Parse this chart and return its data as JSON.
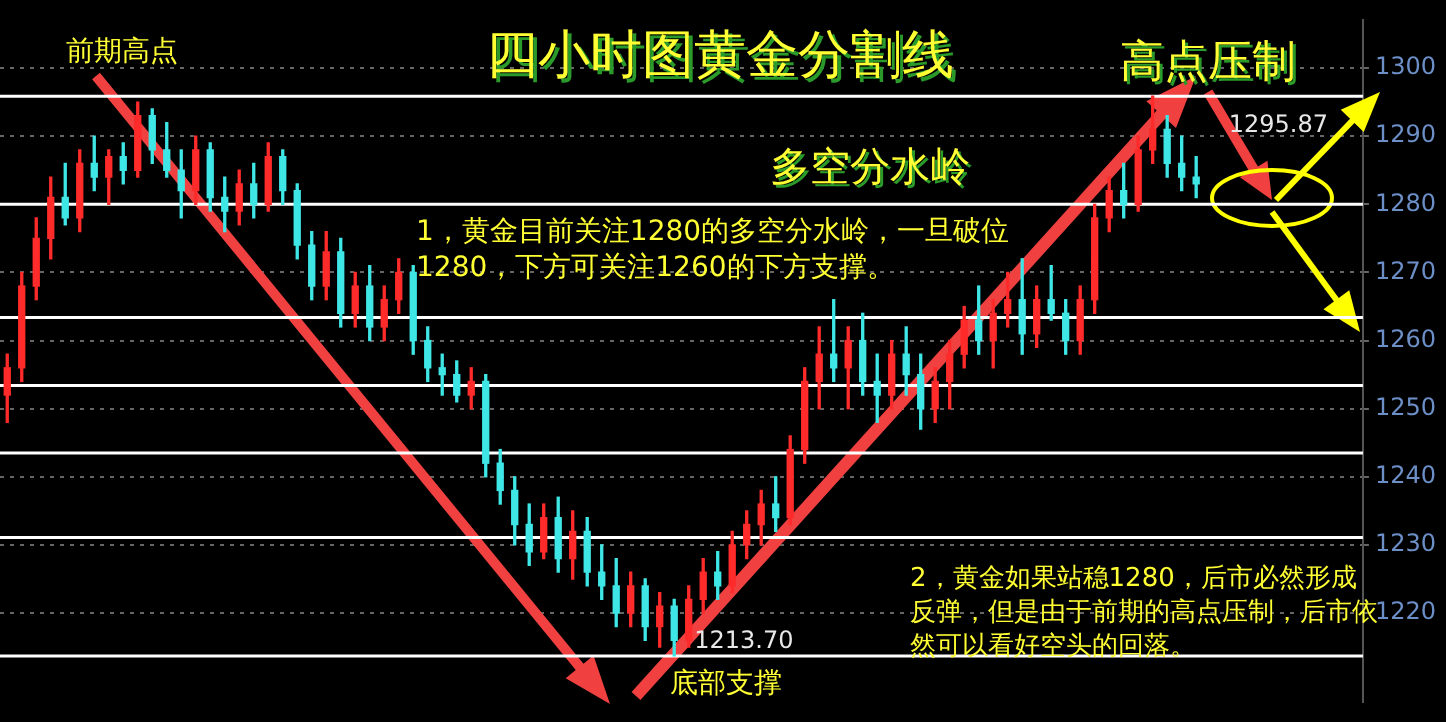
{
  "chart_data": {
    "type": "candlestick",
    "title": "四小时图黄金分割线",
    "categories": [
      null,
      null,
      null,
      null,
      null,
      null,
      null,
      null,
      null,
      null,
      null,
      null,
      null,
      null,
      null,
      null,
      null,
      null,
      null,
      null,
      null,
      null,
      null,
      null,
      null,
      null,
      null,
      null,
      null,
      null,
      null,
      null,
      null,
      null,
      null,
      null,
      null,
      null,
      null,
      null,
      null,
      null,
      null,
      null,
      null,
      null,
      null,
      null,
      null,
      null,
      null,
      null,
      null,
      null,
      null,
      null,
      null,
      null,
      null,
      null,
      null,
      null,
      null,
      null,
      null,
      null,
      null,
      null,
      null,
      null,
      null,
      null,
      null,
      null,
      null,
      null,
      null,
      null,
      null,
      null,
      null,
      null,
      null,
      null,
      null,
      null,
      null,
      null,
      null,
      null,
      null,
      null,
      null,
      null
    ],
    "ohlc": [
      [
        1252,
        1258,
        1248,
        1256
      ],
      [
        1256,
        1270,
        1254,
        1268
      ],
      [
        1268,
        1278,
        1266,
        1275
      ],
      [
        1275,
        1284,
        1272,
        1281
      ],
      [
        1281,
        1286,
        1277,
        1278
      ],
      [
        1278,
        1288,
        1276,
        1286
      ],
      [
        1286,
        1290,
        1282,
        1284
      ],
      [
        1284,
        1288,
        1280,
        1287
      ],
      [
        1287,
        1289,
        1283,
        1285
      ],
      [
        1285,
        1295,
        1284,
        1293
      ],
      [
        1293,
        1294,
        1286,
        1288
      ],
      [
        1288,
        1292,
        1284,
        1285
      ],
      [
        1285,
        1288,
        1278,
        1282
      ],
      [
        1282,
        1290,
        1280,
        1288
      ],
      [
        1288,
        1289,
        1279,
        1281
      ],
      [
        1281,
        1284,
        1276,
        1279
      ],
      [
        1279,
        1285,
        1277,
        1283
      ],
      [
        1283,
        1286,
        1278,
        1280
      ],
      [
        1280,
        1289,
        1279,
        1287
      ],
      [
        1287,
        1288,
        1280,
        1282
      ],
      [
        1282,
        1283,
        1272,
        1274
      ],
      [
        1274,
        1276,
        1266,
        1268
      ],
      [
        1268,
        1276,
        1266,
        1273
      ],
      [
        1273,
        1275,
        1262,
        1264
      ],
      [
        1264,
        1270,
        1262,
        1268
      ],
      [
        1268,
        1271,
        1260,
        1262
      ],
      [
        1262,
        1268,
        1260,
        1266
      ],
      [
        1266,
        1272,
        1264,
        1270
      ],
      [
        1270,
        1271,
        1258,
        1260
      ],
      [
        1260,
        1262,
        1254,
        1256
      ],
      [
        1256,
        1258,
        1252,
        1255
      ],
      [
        1255,
        1257,
        1251,
        1252
      ],
      [
        1252,
        1256,
        1250,
        1254
      ],
      [
        1254,
        1255,
        1240,
        1242
      ],
      [
        1242,
        1244,
        1236,
        1238
      ],
      [
        1238,
        1240,
        1230,
        1233
      ],
      [
        1233,
        1236,
        1227,
        1229
      ],
      [
        1229,
        1236,
        1228,
        1234
      ],
      [
        1234,
        1237,
        1226,
        1228
      ],
      [
        1228,
        1235,
        1225,
        1232
      ],
      [
        1232,
        1234,
        1224,
        1226
      ],
      [
        1226,
        1230,
        1222,
        1224
      ],
      [
        1224,
        1228,
        1218,
        1220
      ],
      [
        1220,
        1226,
        1218,
        1224
      ],
      [
        1224,
        1225,
        1216,
        1218
      ],
      [
        1218,
        1223,
        1215,
        1221
      ],
      [
        1221,
        1222,
        1213.7,
        1216
      ],
      [
        1216,
        1224,
        1215,
        1222
      ],
      [
        1222,
        1228,
        1220,
        1226
      ],
      [
        1226,
        1229,
        1222,
        1224
      ],
      [
        1224,
        1232,
        1223,
        1230
      ],
      [
        1230,
        1235,
        1228,
        1233
      ],
      [
        1233,
        1238,
        1230,
        1236
      ],
      [
        1236,
        1240,
        1232,
        1234
      ],
      [
        1234,
        1246,
        1233,
        1244
      ],
      [
        1244,
        1256,
        1242,
        1254
      ],
      [
        1254,
        1262,
        1250,
        1258
      ],
      [
        1258,
        1266,
        1254,
        1256
      ],
      [
        1256,
        1262,
        1250,
        1260
      ],
      [
        1260,
        1264,
        1252,
        1254
      ],
      [
        1254,
        1258,
        1248,
        1252
      ],
      [
        1252,
        1260,
        1250,
        1258
      ],
      [
        1258,
        1262,
        1252,
        1255
      ],
      [
        1255,
        1258,
        1247,
        1250
      ],
      [
        1250,
        1256,
        1248,
        1254
      ],
      [
        1254,
        1260,
        1250,
        1258
      ],
      [
        1258,
        1265,
        1256,
        1263
      ],
      [
        1263,
        1268,
        1258,
        1260
      ],
      [
        1260,
        1266,
        1256,
        1264
      ],
      [
        1264,
        1270,
        1262,
        1266
      ],
      [
        1266,
        1272,
        1258,
        1261
      ],
      [
        1261,
        1268,
        1259,
        1266
      ],
      [
        1266,
        1271,
        1263,
        1264
      ],
      [
        1264,
        1266,
        1258,
        1260
      ],
      [
        1260,
        1268,
        1258,
        1266
      ],
      [
        1266,
        1280,
        1264,
        1278
      ],
      [
        1278,
        1284,
        1276,
        1282
      ],
      [
        1282,
        1286,
        1278,
        1280
      ],
      [
        1280,
        1290,
        1279,
        1288
      ],
      [
        1288,
        1295.87,
        1286,
        1291
      ],
      [
        1291,
        1293,
        1284,
        1286
      ],
      [
        1286,
        1290,
        1282,
        1284
      ],
      [
        1284,
        1287,
        1281,
        1283
      ],
      null,
      null,
      null,
      null,
      null,
      null,
      null,
      null,
      null,
      null,
      null
    ],
    "colors": [
      "#ff2a2a",
      "#ff2a2a",
      "#ff2a2a",
      "#ff2a2a",
      "#3ee6e6",
      "#ff2a2a",
      "#3ee6e6",
      "#ff2a2a",
      "#3ee6e6",
      "#ff2a2a",
      "#3ee6e6",
      "#3ee6e6",
      "#3ee6e6",
      "#ff2a2a",
      "#3ee6e6",
      "#3ee6e6",
      "#ff2a2a",
      "#3ee6e6",
      "#ff2a2a",
      "#3ee6e6",
      "#3ee6e6",
      "#3ee6e6",
      "#ff2a2a",
      "#3ee6e6",
      "#ff2a2a",
      "#3ee6e6",
      "#ff2a2a",
      "#ff2a2a",
      "#3ee6e6",
      "#3ee6e6",
      "#3ee6e6",
      "#3ee6e6",
      "#ff2a2a",
      "#3ee6e6",
      "#3ee6e6",
      "#3ee6e6",
      "#3ee6e6",
      "#ff2a2a",
      "#3ee6e6",
      "#ff2a2a",
      "#3ee6e6",
      "#3ee6e6",
      "#3ee6e6",
      "#ff2a2a",
      "#3ee6e6",
      "#ff2a2a",
      "#3ee6e6",
      "#ff2a2a",
      "#ff2a2a",
      "#3ee6e6",
      "#ff2a2a",
      "#ff2a2a",
      "#ff2a2a",
      "#3ee6e6",
      "#ff2a2a",
      "#ff2a2a",
      "#ff2a2a",
      "#3ee6e6",
      "#ff2a2a",
      "#3ee6e6",
      "#3ee6e6",
      "#ff2a2a",
      "#3ee6e6",
      "#3ee6e6",
      "#ff2a2a",
      "#ff2a2a",
      "#ff2a2a",
      "#3ee6e6",
      "#ff2a2a",
      "#ff2a2a",
      "#3ee6e6",
      "#ff2a2a",
      "#3ee6e6",
      "#3ee6e6",
      "#ff2a2a",
      "#ff2a2a",
      "#ff2a2a",
      "#3ee6e6",
      "#ff2a2a",
      "#ff2a2a",
      "#3ee6e6",
      "#3ee6e6",
      "#3ee6e6",
      null,
      null,
      null,
      null,
      null,
      null,
      null,
      null,
      null,
      null,
      null
    ],
    "ylim": [
      1207,
      1307
    ],
    "yticks": [
      1220,
      1230,
      1240,
      1250,
      1260,
      1270,
      1280,
      1290,
      1300
    ],
    "grid": "y",
    "tick_labels": "y",
    "ref_lines": [
      {
        "axis": "y",
        "value": 1295.87,
        "color": "#ffffff"
      },
      {
        "axis": "y",
        "value": 1280,
        "color": "#ffffff"
      },
      {
        "axis": "y",
        "value": 1263.4,
        "color": "#ffffff"
      },
      {
        "axis": "y",
        "value": 1253.4,
        "color": "#ffffff"
      },
      {
        "axis": "y",
        "value": 1243.5,
        "color": "#ffffff"
      },
      {
        "axis": "y",
        "value": 1231.1,
        "color": "#ffffff"
      },
      {
        "axis": "y",
        "value": 1213.7,
        "color": "#ffffff"
      }
    ],
    "annotations": [
      "前期高点",
      "高点压制",
      "多空分水岭",
      "1，黄金目前关注1280的多空分水岭，一旦破位1280，下方可关注1260的下方支撑。",
      "2，黄金如果站稳1280，后市必然形成反弹，但是由于前期的高点压制，后市依然可以看好空头的回落。",
      {
        "text": "1295.87",
        "y": 1295.87
      },
      {
        "text": "1213.70",
        "y": 1213.7
      },
      "底部支撑"
    ]
  }
}
